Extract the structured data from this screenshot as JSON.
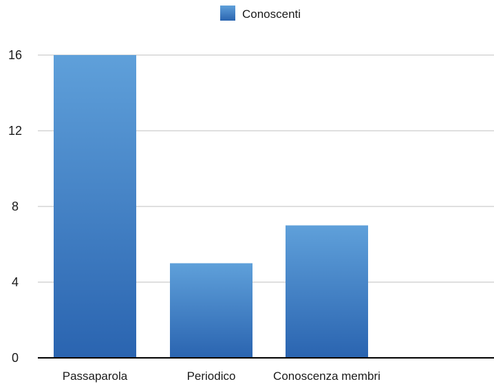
{
  "chart_data": {
    "type": "bar",
    "categories": [
      "Passaparola",
      "Periodico",
      "Conoscenza membri"
    ],
    "series": [
      {
        "name": "Conoscenti",
        "values": [
          16,
          5,
          7
        ]
      }
    ],
    "ylim": [
      0,
      16
    ],
    "yticks": [
      0,
      4,
      8,
      12,
      16
    ],
    "grid": true,
    "legend_position": "top-center",
    "colors": {
      "bar_top": "#5fa0da",
      "bar_bottom": "#2a64b0",
      "grid": "#bfbfbf",
      "axis": "#000000"
    }
  }
}
